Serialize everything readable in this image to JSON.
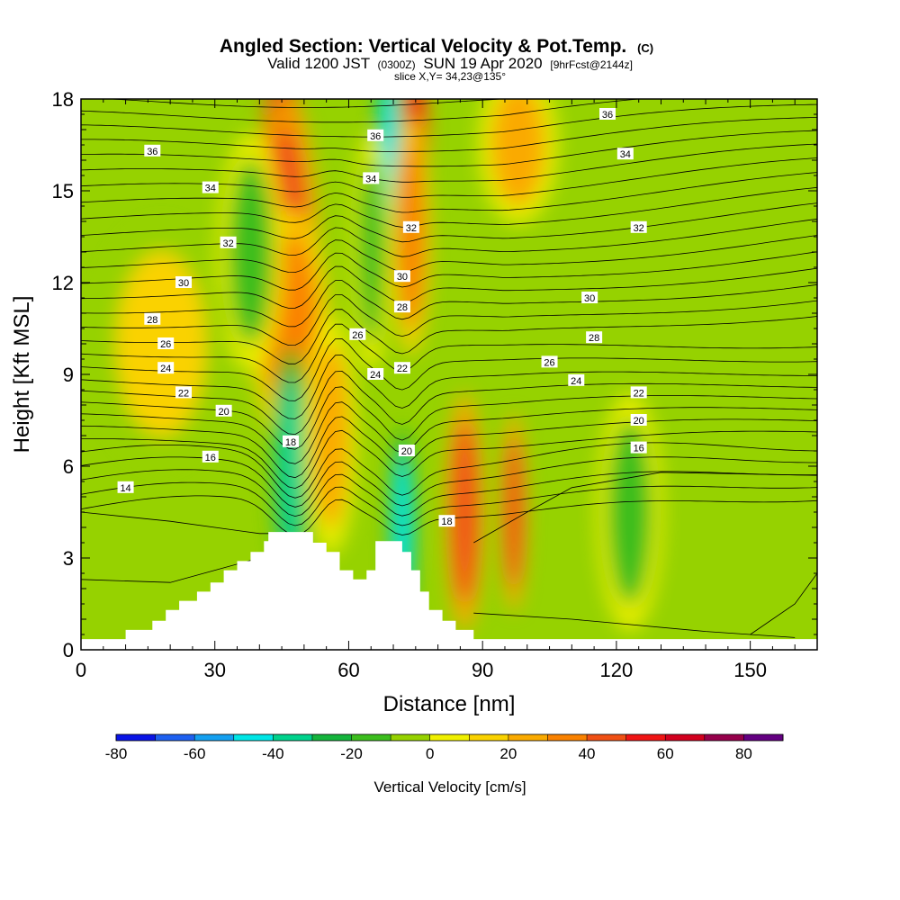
{
  "header": {
    "title": "Angled Section: Vertical Velocity & Pot.Temp.",
    "title_mark": "(C)",
    "valid_prefix": "Valid 1200 JST",
    "valid_utc": "(0300Z)",
    "valid_date": "SUN 19 Apr 2020",
    "forecast": "[9hrFcst@2144z]",
    "slice": "slice X,Y= 34,23@135°"
  },
  "chart_data": {
    "type": "heatmap",
    "xlabel": "Distance [nm]",
    "ylabel": "Height [Kft MSL]",
    "xlim": [
      0,
      165
    ],
    "ylim": [
      0,
      18
    ],
    "x_ticks": [
      0,
      30,
      60,
      90,
      120,
      150
    ],
    "y_ticks": [
      0,
      3,
      6,
      9,
      12,
      15,
      18
    ],
    "colorbar": {
      "label": "Vertical Velocity [cm/s]",
      "min": -80,
      "max": 90,
      "step": 10,
      "tick_labels": [
        -80,
        -60,
        -40,
        -20,
        0,
        20,
        40,
        60,
        80
      ],
      "colors": [
        "#0a14e6",
        "#1e60f0",
        "#14a0f0",
        "#00e6e6",
        "#00d28c",
        "#14b43c",
        "#3cbe1e",
        "#96d200",
        "#f0f000",
        "#fad200",
        "#faaa00",
        "#fa8200",
        "#f05014",
        "#f01414",
        "#d2001e",
        "#96004b",
        "#640082"
      ]
    },
    "velocity_cells": [
      {
        "x": 45,
        "y": 16.5,
        "w": 0,
        "v": 60,
        "sx": 3,
        "sy": 2.0
      },
      {
        "x": 46,
        "y": 13,
        "v": 40,
        "sx": 5,
        "sy": 4
      },
      {
        "x": 47,
        "y": 10.5,
        "v": 30,
        "sx": 6,
        "sy": 3
      },
      {
        "x": 38,
        "y": 13,
        "v": -20,
        "sx": 5,
        "sy": 3
      },
      {
        "x": 47,
        "y": 6,
        "v": -40,
        "sx": 3,
        "sy": 3
      },
      {
        "x": 56,
        "y": 7,
        "v": 20,
        "sx": 4,
        "sy": 3
      },
      {
        "x": 69,
        "y": 16,
        "v": -50,
        "sx": 2,
        "sy": 3
      },
      {
        "x": 65,
        "y": 13,
        "v": -20,
        "sx": 3,
        "sy": 3
      },
      {
        "x": 75,
        "y": 17,
        "v": 50,
        "sx": 2,
        "sy": 2
      },
      {
        "x": 74,
        "y": 13.5,
        "v": 30,
        "sx": 3,
        "sy": 3
      },
      {
        "x": 72,
        "y": 4,
        "v": -50,
        "sx": 2,
        "sy": 2.5
      },
      {
        "x": 86,
        "y": 4.5,
        "v": 40,
        "sx": 3,
        "sy": 3
      },
      {
        "x": 97,
        "y": 4.5,
        "v": 40,
        "sx": 2,
        "sy": 2.5
      },
      {
        "x": 98,
        "y": 16.5,
        "v": 20,
        "sx": 6,
        "sy": 2
      },
      {
        "x": 123,
        "y": 4.5,
        "v": -20,
        "sx": 5,
        "sy": 3
      },
      {
        "x": 18,
        "y": 10,
        "v": 10,
        "sx": 10,
        "sy": 3
      }
    ],
    "theta_levels": [
      14,
      16,
      18,
      20,
      22,
      24,
      26,
      28,
      30,
      32,
      34,
      36
    ],
    "contour_labels": [
      {
        "text": "36",
        "x": 16,
        "y": 16.3
      },
      {
        "text": "34",
        "x": 29,
        "y": 15.1
      },
      {
        "text": "32",
        "x": 33,
        "y": 13.3
      },
      {
        "text": "30",
        "x": 23,
        "y": 12
      },
      {
        "text": "28",
        "x": 16,
        "y": 10.8
      },
      {
        "text": "26",
        "x": 19,
        "y": 10.0
      },
      {
        "text": "24",
        "x": 19,
        "y": 9.2
      },
      {
        "text": "22",
        "x": 23,
        "y": 8.4
      },
      {
        "text": "20",
        "x": 32,
        "y": 7.8
      },
      {
        "text": "16",
        "x": 29,
        "y": 6.3
      },
      {
        "text": "14",
        "x": 10,
        "y": 5.3
      },
      {
        "text": "18",
        "x": 47,
        "y": 6.8
      },
      {
        "text": "26",
        "x": 62,
        "y": 10.3
      },
      {
        "text": "24",
        "x": 66,
        "y": 9.0
      },
      {
        "text": "22",
        "x": 72,
        "y": 9.2
      },
      {
        "text": "20",
        "x": 73,
        "y": 6.5
      },
      {
        "text": "18",
        "x": 82,
        "y": 4.2
      },
      {
        "text": "36",
        "x": 66,
        "y": 16.8
      },
      {
        "text": "34",
        "x": 65,
        "y": 15.4
      },
      {
        "text": "32",
        "x": 74,
        "y": 13.8
      },
      {
        "text": "30",
        "x": 72,
        "y": 12.2
      },
      {
        "text": "28",
        "x": 72,
        "y": 11.2
      },
      {
        "text": "36",
        "x": 118,
        "y": 17.5
      },
      {
        "text": "34",
        "x": 122,
        "y": 16.2
      },
      {
        "text": "32",
        "x": 125,
        "y": 13.8
      },
      {
        "text": "30",
        "x": 114,
        "y": 11.5
      },
      {
        "text": "28",
        "x": 115,
        "y": 10.2
      },
      {
        "text": "26",
        "x": 105,
        "y": 9.4
      },
      {
        "text": "24",
        "x": 111,
        "y": 8.8
      },
      {
        "text": "22",
        "x": 125,
        "y": 8.4
      },
      {
        "text": "20",
        "x": 125,
        "y": 7.5
      },
      {
        "text": "16",
        "x": 125,
        "y": 6.6
      }
    ],
    "terrain_steps": [
      [
        0,
        0.35
      ],
      [
        10,
        0.35
      ],
      [
        10,
        0.65
      ],
      [
        16,
        0.65
      ],
      [
        16,
        0.95
      ],
      [
        19,
        0.95
      ],
      [
        19,
        1.3
      ],
      [
        22,
        1.3
      ],
      [
        22,
        1.6
      ],
      [
        26,
        1.6
      ],
      [
        26,
        1.9
      ],
      [
        29,
        1.9
      ],
      [
        29,
        2.2
      ],
      [
        32,
        2.2
      ],
      [
        32,
        2.6
      ],
      [
        35,
        2.6
      ],
      [
        35,
        2.9
      ],
      [
        38,
        2.9
      ],
      [
        38,
        3.2
      ],
      [
        41,
        3.2
      ],
      [
        41,
        3.55
      ],
      [
        42,
        3.55
      ],
      [
        42,
        3.85
      ],
      [
        52,
        3.85
      ],
      [
        52,
        3.5
      ],
      [
        55,
        3.5
      ],
      [
        55,
        3.2
      ],
      [
        58,
        3.2
      ],
      [
        58,
        2.6
      ],
      [
        61,
        2.6
      ],
      [
        61,
        2.3
      ],
      [
        64,
        2.3
      ],
      [
        64,
        2.6
      ],
      [
        66,
        2.6
      ],
      [
        66,
        3.55
      ],
      [
        72,
        3.55
      ],
      [
        72,
        3.2
      ],
      [
        74,
        3.2
      ],
      [
        74,
        2.6
      ],
      [
        76,
        2.6
      ],
      [
        76,
        1.9
      ],
      [
        78,
        1.9
      ],
      [
        78,
        1.3
      ],
      [
        81,
        1.3
      ],
      [
        81,
        0.95
      ],
      [
        84,
        0.95
      ],
      [
        84,
        0.65
      ],
      [
        88,
        0.65
      ],
      [
        88,
        0.35
      ],
      [
        165,
        0.35
      ]
    ]
  }
}
